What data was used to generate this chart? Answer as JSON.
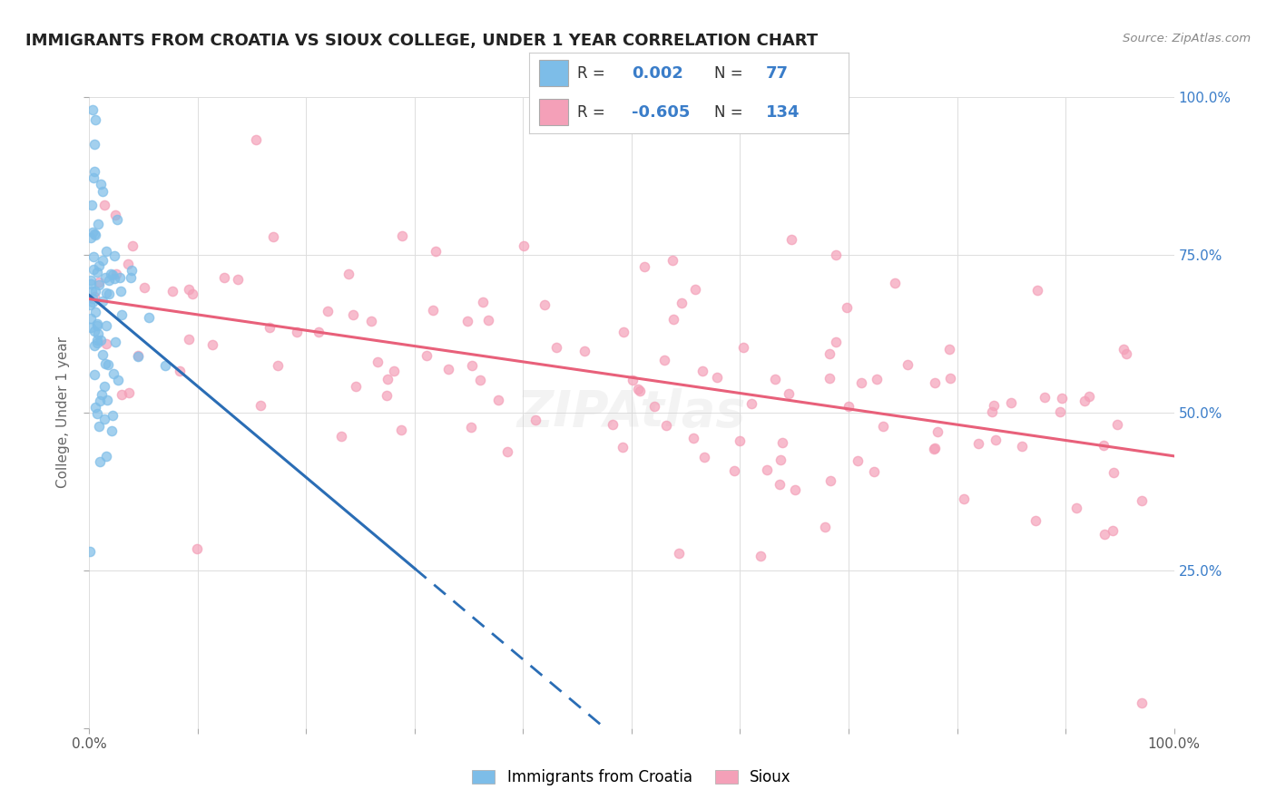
{
  "title": "IMMIGRANTS FROM CROATIA VS SIOUX COLLEGE, UNDER 1 YEAR CORRELATION CHART",
  "source_text": "Source: ZipAtlas.com",
  "ylabel": "College, Under 1 year",
  "r_blue": 0.002,
  "n_blue": 77,
  "r_pink": -0.605,
  "n_pink": 134,
  "blue_color": "#7dbde8",
  "pink_color": "#f4a0b8",
  "blue_line_color": "#2a6db5",
  "pink_line_color": "#e8607a",
  "legend_label_blue": "Immigrants from Croatia",
  "legend_label_pink": "Sioux",
  "x_ticks": [
    0.0,
    0.1,
    0.2,
    0.3,
    0.4,
    0.5,
    0.6,
    0.7,
    0.8,
    0.9,
    1.0
  ],
  "x_tick_labels_show": [
    "0.0%",
    "",
    "",
    "",
    "",
    "",
    "",
    "",
    "",
    "",
    "100.0%"
  ],
  "y_ticks": [
    0.0,
    0.25,
    0.5,
    0.75,
    1.0
  ],
  "y_tick_labels_right": [
    "",
    "25.0%",
    "50.0%",
    "75.0%",
    "100.0%"
  ],
  "background_color": "#ffffff",
  "grid_color": "#dddddd",
  "text_color_blue": "#3a7dc9",
  "seed": 42
}
